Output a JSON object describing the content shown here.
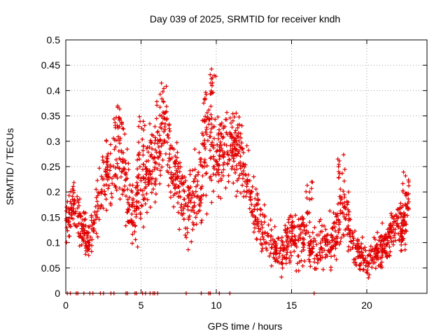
{
  "chart_data": {
    "type": "scatter",
    "title": "Day 039 of 2025, SRMTID for receiver kndh",
    "xlabel": "GPS time / hours",
    "ylabel": "SRMTID / TECUs",
    "xlim": [
      0,
      24
    ],
    "ylim": [
      0,
      0.5
    ],
    "xticks": [
      0,
      5,
      10,
      15,
      20
    ],
    "xtick_labels": [
      "0",
      "5",
      "10",
      "15",
      "20"
    ],
    "yticks": [
      0,
      0.05,
      0.1,
      0.15,
      0.2,
      0.25,
      0.3,
      0.35,
      0.4,
      0.45,
      0.5
    ],
    "ytick_labels": [
      "0",
      "0.05",
      "0.1",
      "0.15",
      "0.2",
      "0.25",
      "0.3",
      "0.35",
      "0.4",
      "0.45",
      "0.5"
    ],
    "grid": true,
    "marker": "+",
    "color": "#e00000",
    "trend": {
      "x": [
        0.0,
        0.5,
        1.0,
        1.5,
        2.0,
        2.5,
        3.0,
        3.5,
        4.0,
        4.5,
        5.0,
        5.5,
        6.0,
        6.5,
        7.0,
        7.5,
        8.0,
        8.5,
        9.0,
        9.5,
        10.0,
        10.5,
        11.0,
        11.5,
        12.0,
        12.5,
        13.0,
        13.5,
        14.0,
        14.5,
        15.0,
        15.5,
        16.0,
        16.5,
        17.0,
        17.5,
        18.0,
        18.5,
        19.0,
        19.5,
        20.0,
        20.5,
        21.0,
        21.5,
        22.0,
        22.5,
        22.8
      ],
      "y": [
        0.14,
        0.18,
        0.13,
        0.1,
        0.15,
        0.24,
        0.23,
        0.3,
        0.2,
        0.17,
        0.19,
        0.25,
        0.27,
        0.33,
        0.25,
        0.22,
        0.16,
        0.19,
        0.23,
        0.3,
        0.26,
        0.28,
        0.29,
        0.26,
        0.24,
        0.16,
        0.13,
        0.11,
        0.09,
        0.08,
        0.12,
        0.1,
        0.1,
        0.08,
        0.09,
        0.1,
        0.12,
        0.17,
        0.1,
        0.08,
        0.06,
        0.08,
        0.09,
        0.11,
        0.14,
        0.12,
        0.2
      ],
      "spread": [
        0.04,
        0.04,
        0.04,
        0.03,
        0.05,
        0.06,
        0.07,
        0.08,
        0.07,
        0.06,
        0.08,
        0.07,
        0.08,
        0.08,
        0.07,
        0.07,
        0.06,
        0.07,
        0.08,
        0.09,
        0.07,
        0.07,
        0.07,
        0.07,
        0.06,
        0.05,
        0.04,
        0.04,
        0.04,
        0.04,
        0.05,
        0.05,
        0.04,
        0.04,
        0.04,
        0.04,
        0.05,
        0.06,
        0.04,
        0.03,
        0.03,
        0.03,
        0.04,
        0.04,
        0.04,
        0.05,
        0.05
      ]
    },
    "peaks": [
      {
        "x": 3.6,
        "y": 0.39
      },
      {
        "x": 5.0,
        "y": 0.36
      },
      {
        "x": 6.5,
        "y": 0.42
      },
      {
        "x": 9.3,
        "y": 0.4
      },
      {
        "x": 9.8,
        "y": 0.46
      },
      {
        "x": 11.3,
        "y": 0.36
      },
      {
        "x": 18.3,
        "y": 0.28
      },
      {
        "x": 16.2,
        "y": 0.22
      },
      {
        "x": 22.6,
        "y": 0.24
      }
    ],
    "zero_points_x": [
      0.1,
      0.3,
      0.7,
      0.8,
      1.2,
      1.6,
      1.8,
      2.3,
      2.5,
      3.0,
      3.2,
      4.0,
      4.1,
      4.6,
      4.7,
      5.1,
      5.3,
      5.6,
      5.8,
      5.9,
      6.1,
      8.0,
      9.0,
      9.5,
      9.6,
      10.2,
      10.9,
      16.5
    ]
  }
}
